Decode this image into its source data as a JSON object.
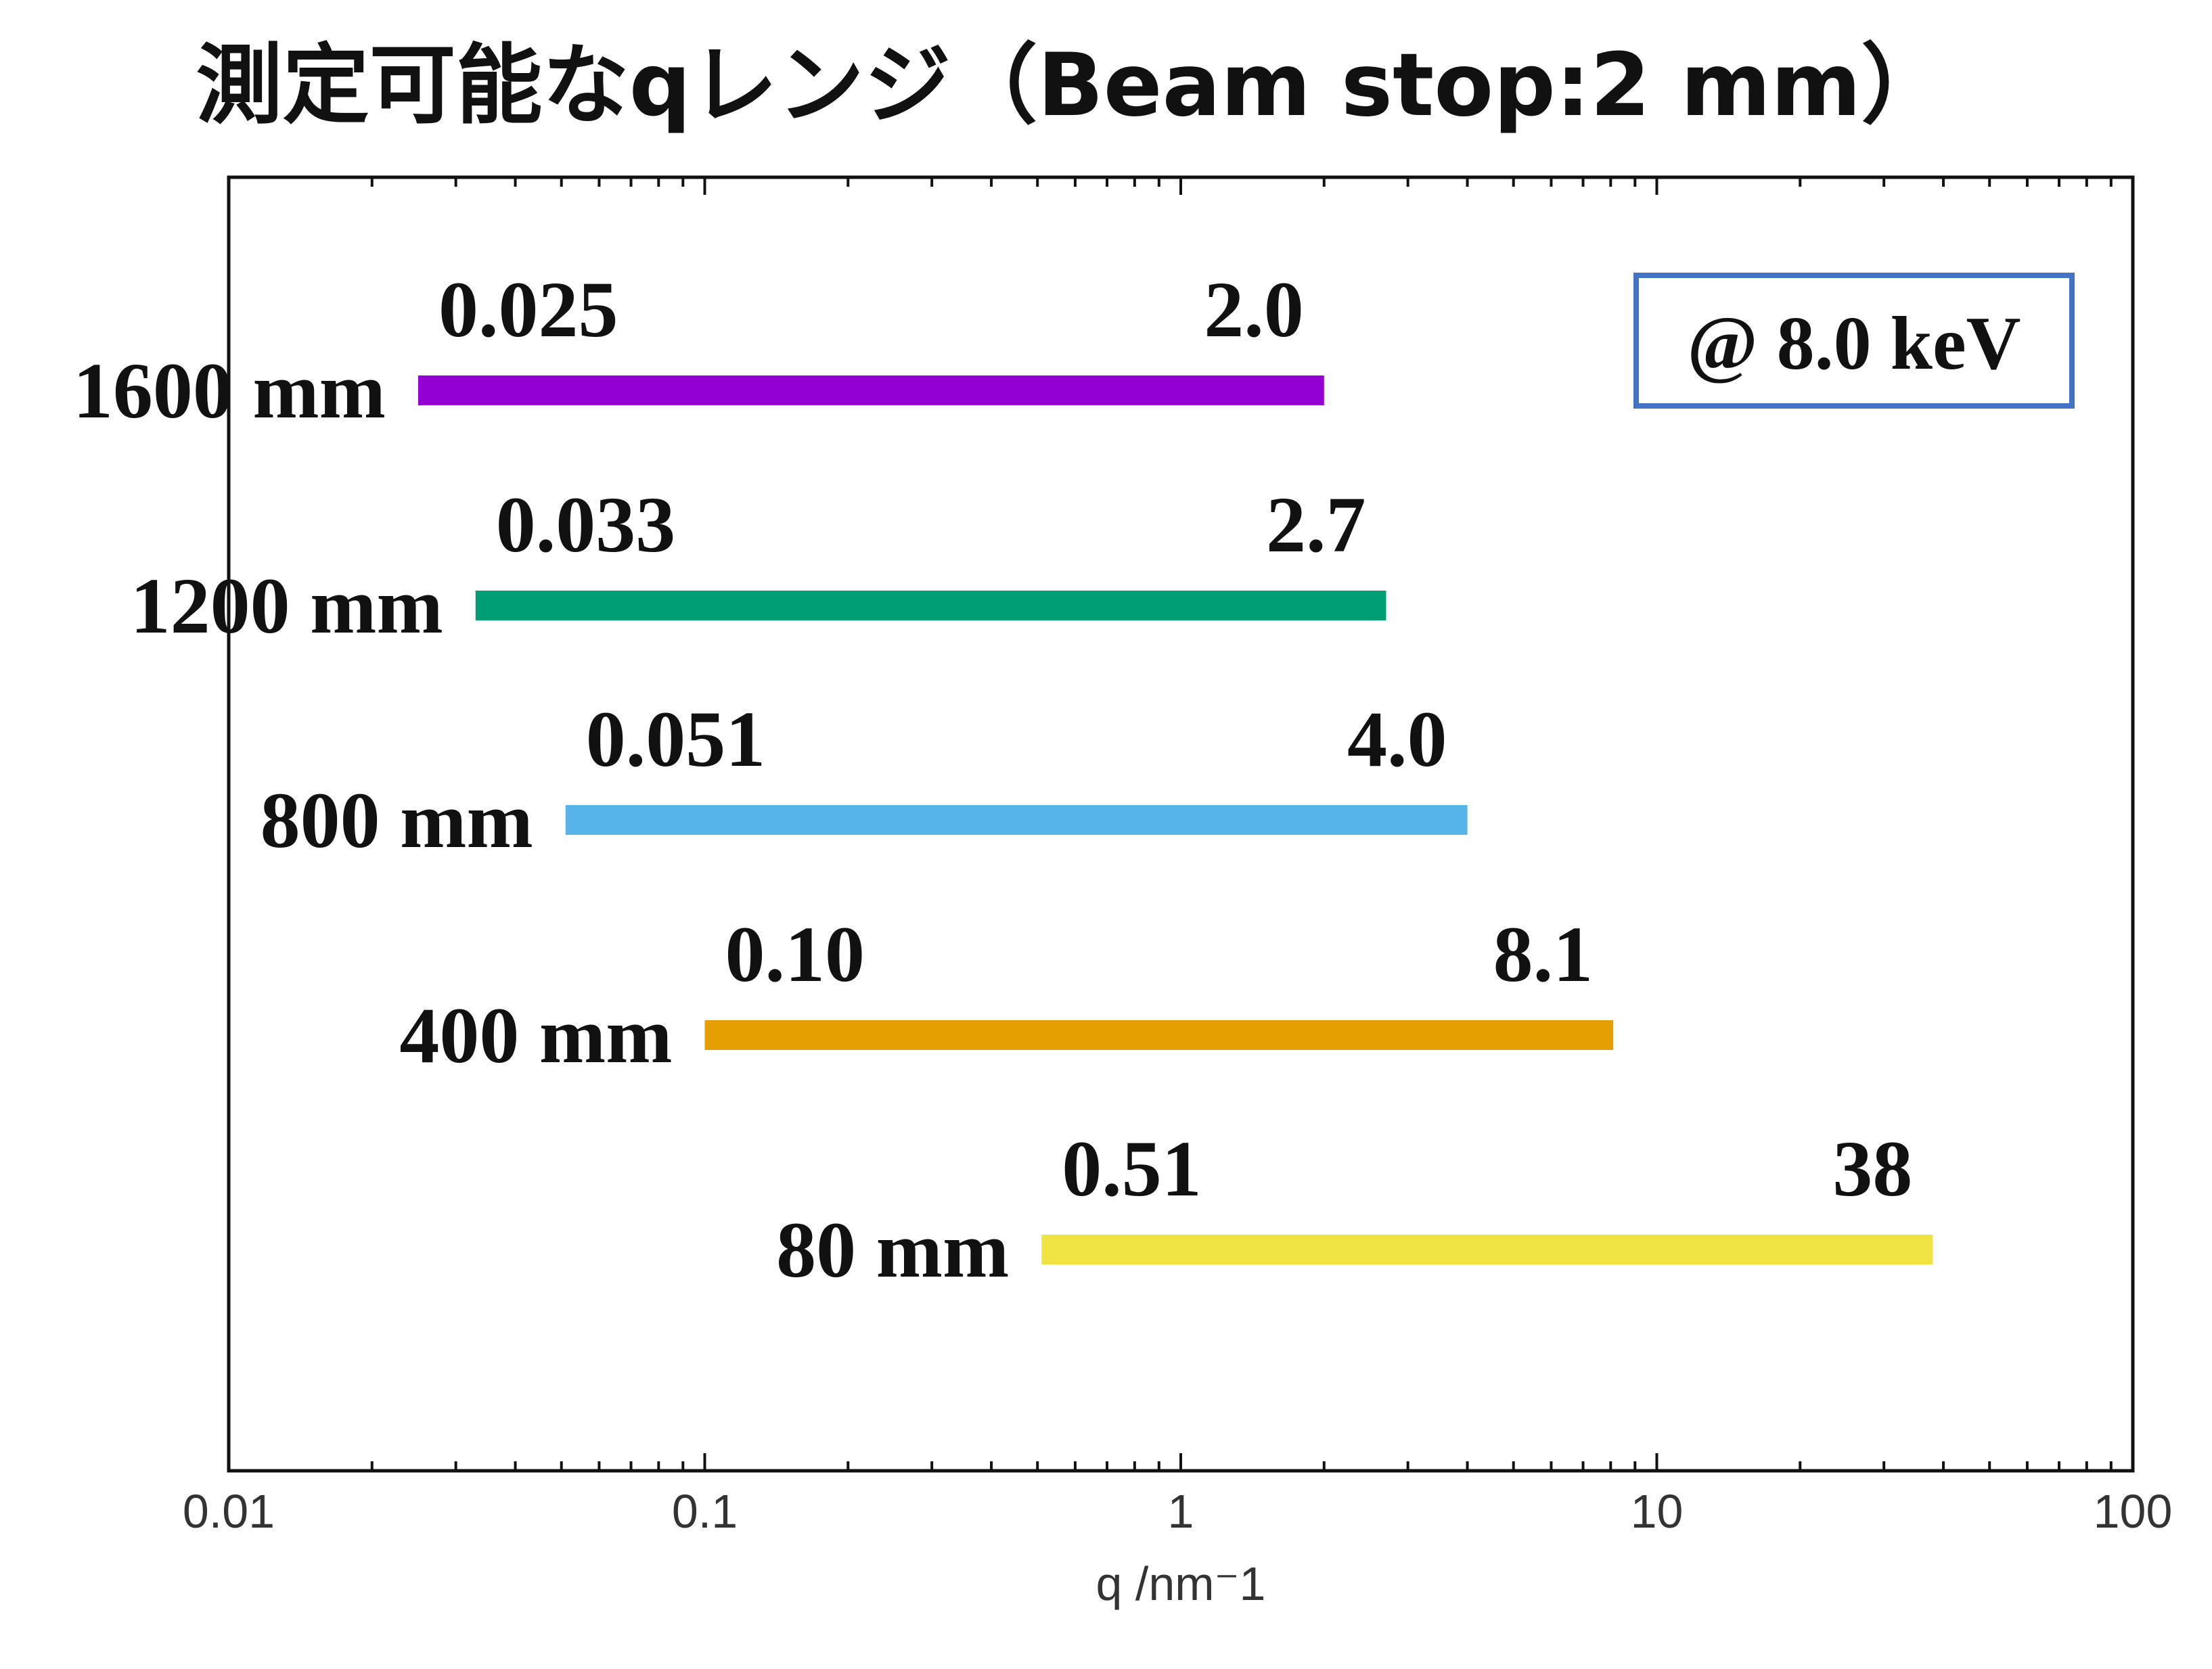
{
  "chart_data": {
    "type": "bar",
    "title": "測定可能なqレンジ（Beam stop:2 mm）",
    "xlabel": "q /nm⁻1",
    "xscale": "log",
    "xlim": [
      0.01,
      100
    ],
    "x_ticks": [
      "0.01",
      "0.1",
      "1",
      "10",
      "100"
    ],
    "annotation": "@ 8.0 keV",
    "annotation_color": "#4472c4",
    "grid": false,
    "series": [
      {
        "category": "1600 mm",
        "min": 0.025,
        "max": 2.0,
        "min_label": "0.025",
        "max_label": "2.0",
        "color": "#9400d3"
      },
      {
        "category": "1200 mm",
        "min": 0.033,
        "max": 2.7,
        "min_label": "0.033",
        "max_label": "2.7",
        "color": "#009e73"
      },
      {
        "category": "800 mm",
        "min": 0.051,
        "max": 4.0,
        "min_label": "0.051",
        "max_label": "4.0",
        "color": "#56b4e9"
      },
      {
        "category": "400 mm",
        "min": 0.1,
        "max": 8.1,
        "min_label": "0.10",
        "max_label": "8.1",
        "color": "#e69f00"
      },
      {
        "category": "80 mm",
        "min": 0.51,
        "max": 38,
        "min_label": "0.51",
        "max_label": "38",
        "color": "#f0e442"
      }
    ]
  }
}
